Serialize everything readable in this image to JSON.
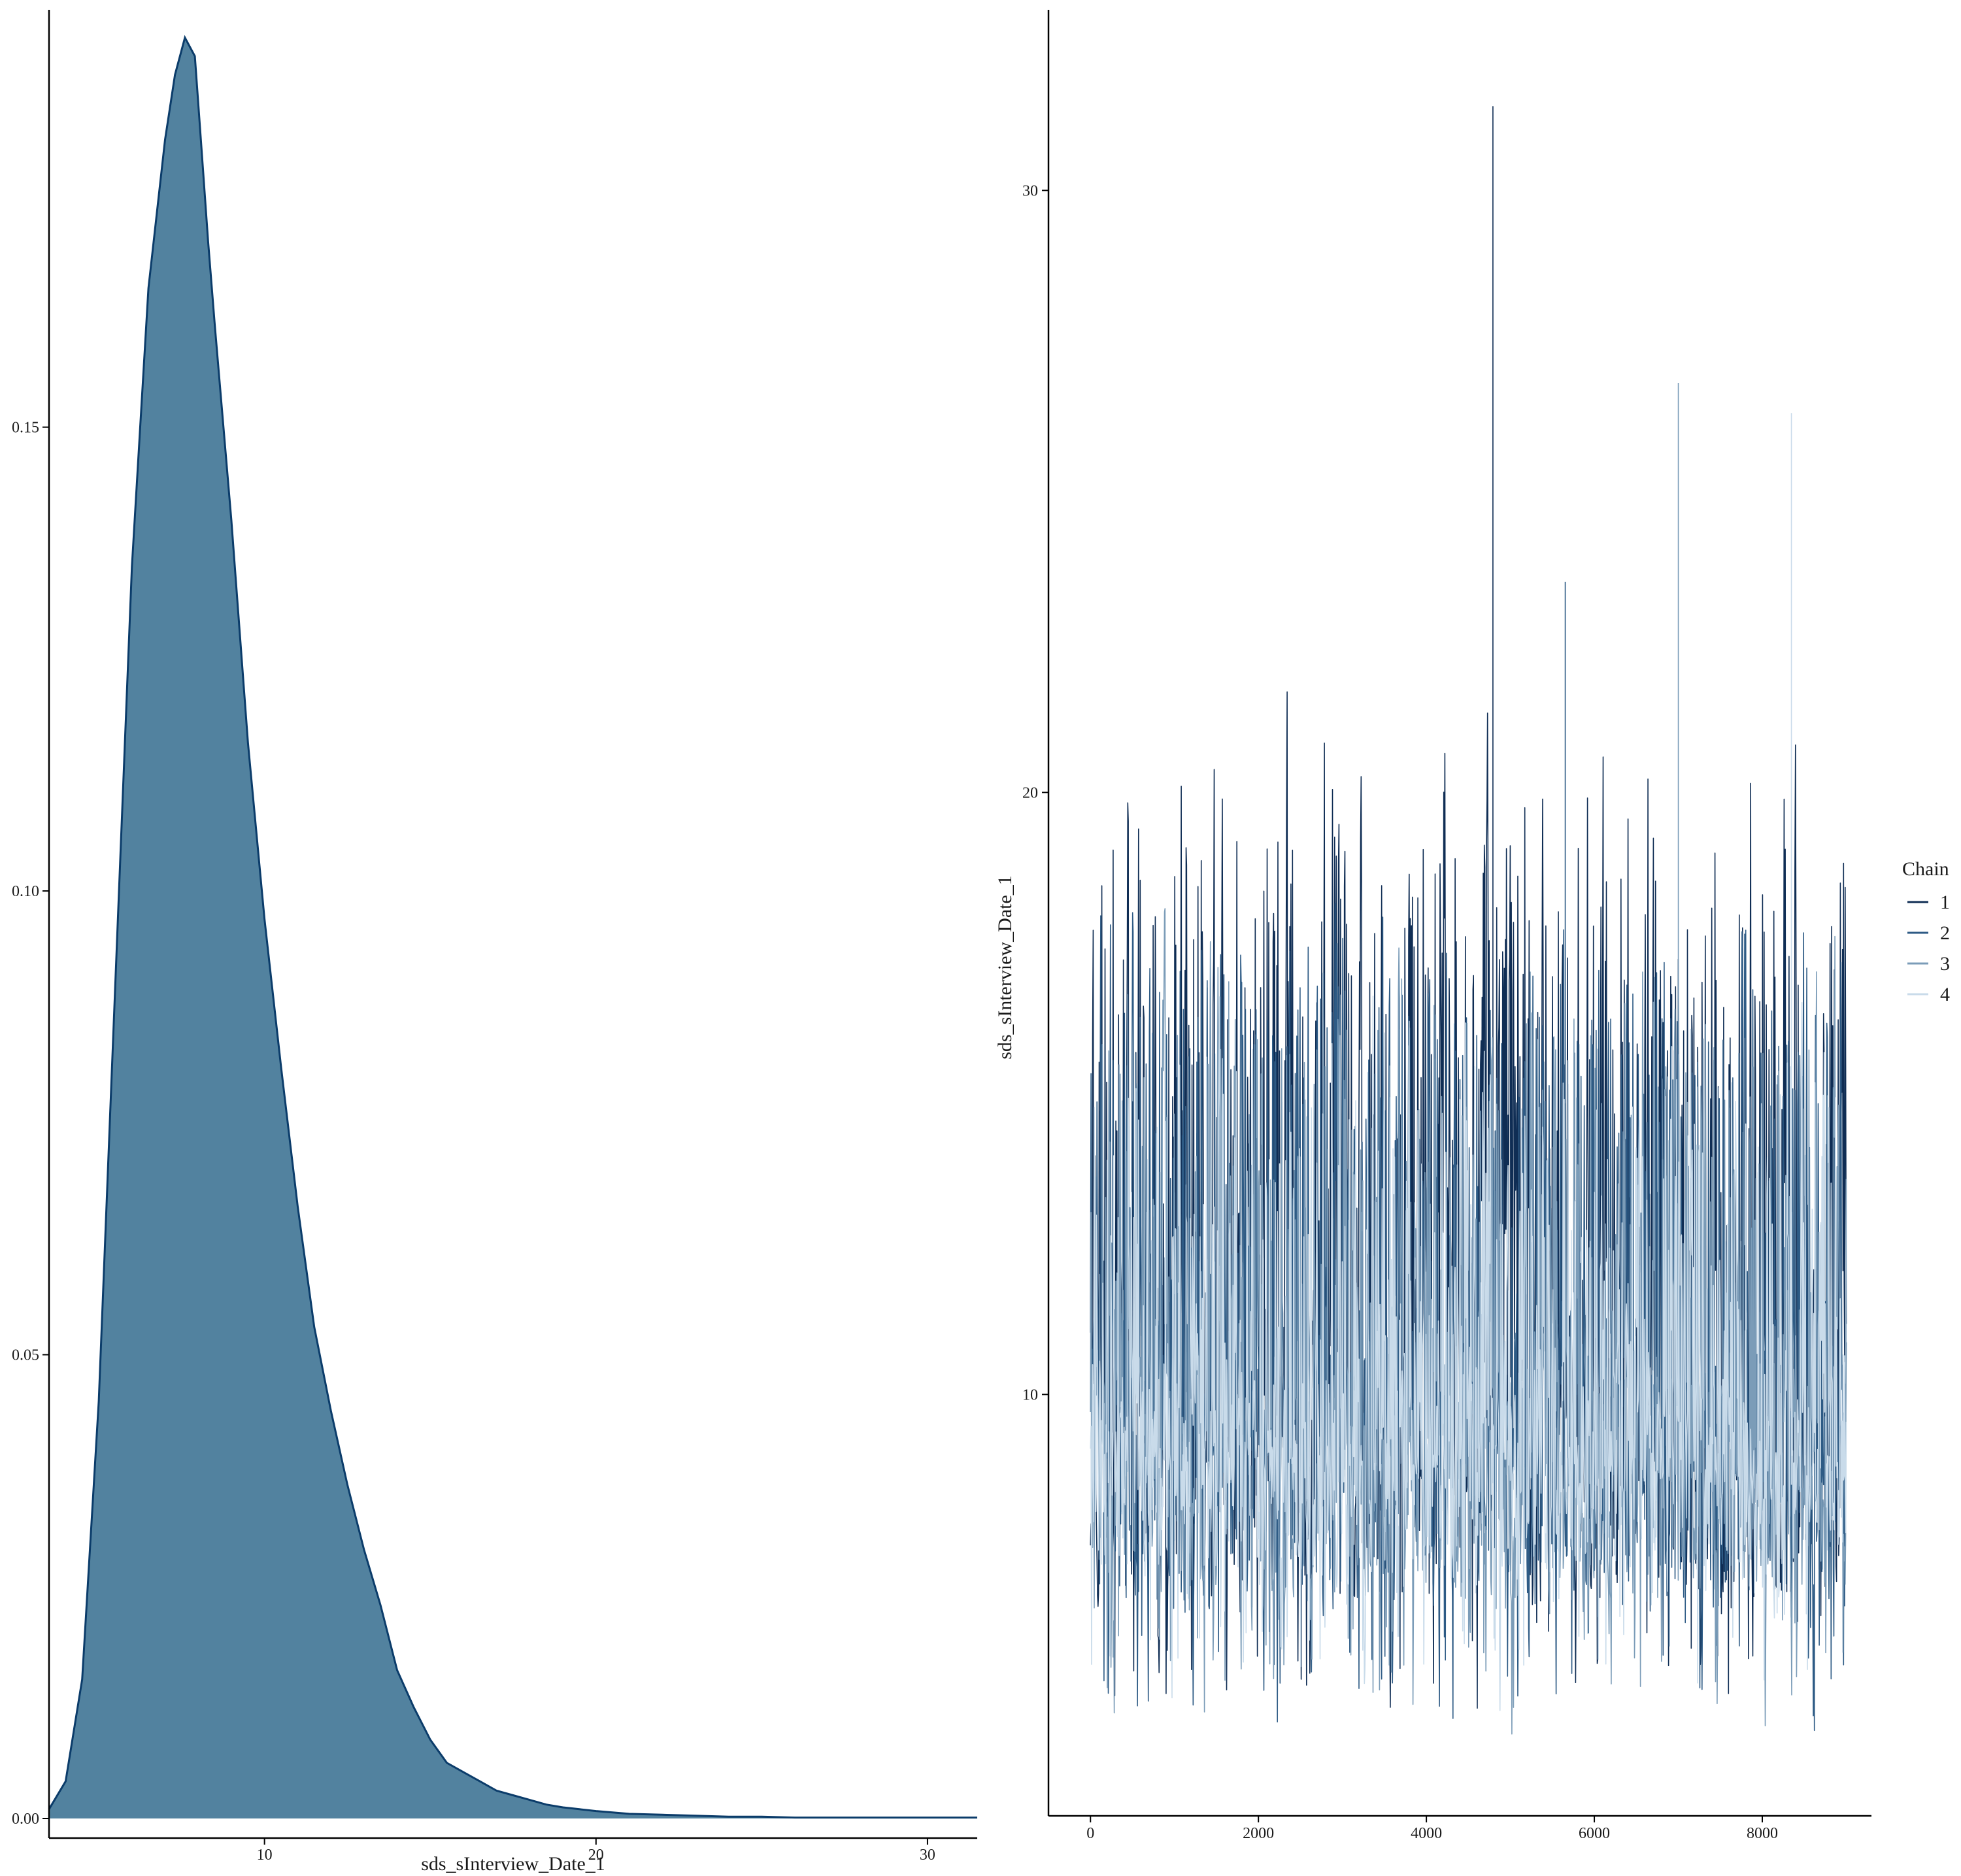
{
  "chart_data": [
    {
      "type": "area",
      "xlabel": "sds_sInterview_Date_1",
      "ylabel": "",
      "xlim": [
        3.5,
        31.5
      ],
      "ylim": [
        0,
        0.195
      ],
      "x_ticks": [
        10,
        20,
        30
      ],
      "y_ticks": [
        0.0,
        0.05,
        0.1,
        0.15
      ],
      "x_tick_labels": [
        "10",
        "20",
        "30"
      ],
      "y_tick_labels": [
        "0.00",
        "0.05",
        "0.10",
        "0.15"
      ],
      "fill_color": "#52829F",
      "line_color": "#0B3C6A",
      "grid": false,
      "x": [
        3.5,
        4.0,
        4.5,
        5.0,
        5.5,
        6.0,
        6.5,
        7.0,
        7.3,
        7.6,
        7.9,
        8.1,
        8.3,
        8.5,
        9.0,
        9.5,
        10.0,
        10.5,
        11.0,
        11.5,
        12.0,
        12.5,
        13.0,
        13.5,
        14.0,
        14.5,
        15.0,
        15.5,
        16.0,
        16.5,
        17.0,
        17.5,
        18.0,
        18.5,
        19.0,
        19.5,
        20.0,
        21.0,
        22.0,
        23.0,
        24.0,
        25.0,
        26.0,
        27.0,
        28.0,
        29.0,
        30.0,
        31.5
      ],
      "y": [
        0.001,
        0.004,
        0.015,
        0.045,
        0.09,
        0.135,
        0.165,
        0.181,
        0.188,
        0.192,
        0.19,
        0.18,
        0.17,
        0.161,
        0.14,
        0.116,
        0.097,
        0.081,
        0.066,
        0.053,
        0.044,
        0.036,
        0.029,
        0.023,
        0.016,
        0.012,
        0.0085,
        0.006,
        0.005,
        0.004,
        0.003,
        0.0025,
        0.002,
        0.0015,
        0.0012,
        0.001,
        0.0008,
        0.0005,
        0.0004,
        0.0003,
        0.0002,
        0.0002,
        0.0001,
        0.0001,
        0.0001,
        0.0001,
        0.0001,
        0.0001
      ]
    },
    {
      "type": "line",
      "xlabel": "",
      "ylabel": "sds_sInterview_Date_1",
      "xlim": [
        -500,
        9300
      ],
      "ylim": [
        3.0,
        33.0
      ],
      "x_ticks": [
        0,
        2000,
        4000,
        6000,
        8000
      ],
      "y_ticks": [
        10,
        20,
        30
      ],
      "x_tick_labels": [
        "0",
        "2000",
        "4000",
        "6000",
        "8000"
      ],
      "y_tick_labels": [
        "10",
        "20",
        "30"
      ],
      "grid": false,
      "legend": {
        "title": "Chain",
        "position": "right"
      },
      "iterations": [
        0,
        9000
      ],
      "series": [
        {
          "name": "1",
          "color": "#0F2D54",
          "center": 9.5,
          "low": 6.0,
          "high": 17.5,
          "min": 3.8,
          "max": 31.4
        },
        {
          "name": "2",
          "color": "#2E5B85",
          "center": 9.0,
          "low": 5.8,
          "high": 16.5,
          "min": 3.6,
          "max": 23.5
        },
        {
          "name": "3",
          "color": "#7B9CB8",
          "center": 8.5,
          "low": 5.9,
          "high": 14.5,
          "min": 3.6,
          "max": 26.8
        },
        {
          "name": "4",
          "color": "#C9DBEA",
          "center": 8.5,
          "low": 6.3,
          "high": 12.8,
          "min": 4.2,
          "max": 26.3
        }
      ]
    }
  ]
}
